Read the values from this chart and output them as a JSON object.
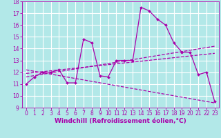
{
  "bg_color": "#b2e8e8",
  "grid_color": "#ffffff",
  "line_color": "#aa00aa",
  "xlabel": "Windchill (Refroidissement éolien,°C)",
  "xlabel_fontsize": 6.5,
  "tick_fontsize": 5.5,
  "xlim": [
    -0.5,
    23.5
  ],
  "ylim": [
    9,
    18
  ],
  "yticks": [
    9,
    10,
    11,
    12,
    13,
    14,
    15,
    16,
    17,
    18
  ],
  "xticks": [
    0,
    1,
    2,
    3,
    4,
    5,
    6,
    7,
    8,
    9,
    10,
    11,
    12,
    13,
    14,
    15,
    16,
    17,
    18,
    19,
    20,
    21,
    22,
    23
  ],
  "main_x": [
    0,
    1,
    2,
    3,
    4,
    5,
    6,
    7,
    8,
    9,
    10,
    11,
    12,
    13,
    14,
    15,
    16,
    17,
    18,
    19,
    20,
    21,
    22,
    23
  ],
  "main_y": [
    11.0,
    11.6,
    12.0,
    12.0,
    12.2,
    11.1,
    11.1,
    14.8,
    14.5,
    11.7,
    11.6,
    13.0,
    13.0,
    13.0,
    17.5,
    17.2,
    16.5,
    16.0,
    14.5,
    13.7,
    13.7,
    11.8,
    12.0,
    9.5
  ],
  "trend1_x": [
    0,
    23
  ],
  "trend1_y": [
    11.6,
    14.2
  ],
  "trend2_x": [
    0,
    23
  ],
  "trend2_y": [
    11.9,
    13.6
  ],
  "trend3_x": [
    0,
    23
  ],
  "trend3_y": [
    12.2,
    9.4
  ]
}
